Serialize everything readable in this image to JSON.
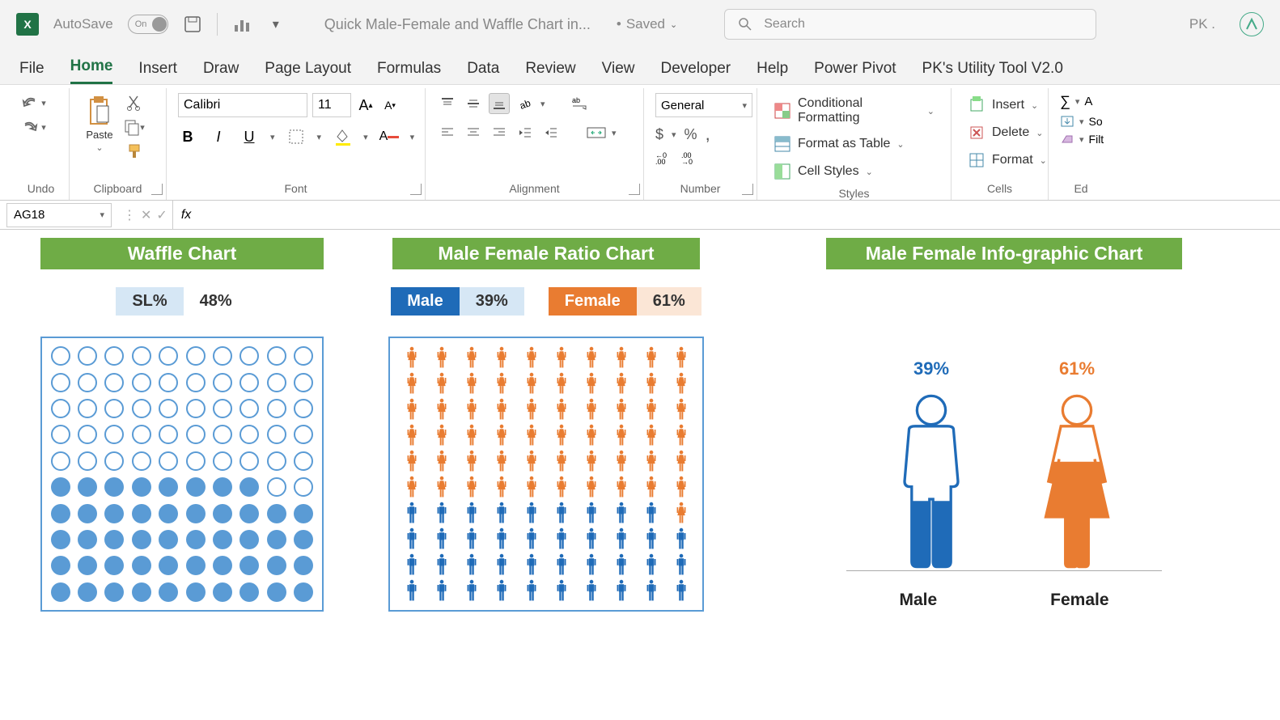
{
  "app": {
    "logo_letter": "X",
    "autosave_label": "AutoSave",
    "autosave_state": "On",
    "doc_title": "Quick Male-Female and Waffle Chart in...",
    "saved_status": "Saved",
    "search_placeholder": "Search",
    "user_initials": "PK ."
  },
  "tabs": [
    "File",
    "Home",
    "Insert",
    "Draw",
    "Page Layout",
    "Formulas",
    "Data",
    "Review",
    "View",
    "Developer",
    "Help",
    "Power Pivot",
    "PK's Utility Tool V2.0"
  ],
  "active_tab": "Home",
  "ribbon": {
    "groups": {
      "undo": "Undo",
      "clipboard": "Clipboard",
      "clipboard_paste": "Paste",
      "font": "Font",
      "font_name": "Calibri",
      "font_size": "11",
      "alignment": "Alignment",
      "number": "Number",
      "number_format": "General",
      "styles": "Styles",
      "styles_cond": "Conditional Formatting",
      "styles_table": "Format as Table",
      "styles_cell": "Cell Styles",
      "cells": "Cells",
      "cells_insert": "Insert",
      "cells_delete": "Delete",
      "cells_format": "Format",
      "editing": "Ed",
      "editing_sort": "So",
      "editing_filter": "Filt"
    }
  },
  "formula_bar": {
    "namebox": "AG18",
    "fx": "fx",
    "formula": ""
  },
  "colors": {
    "green_header": "#6fac46",
    "blue": "#5a9bd5",
    "blue_dark": "#1f6bb8",
    "blue_light": "#d6e7f5",
    "orange": "#e97c31",
    "orange_light": "#fbe6d6"
  },
  "waffle": {
    "title": "Waffle Chart",
    "sl_label": "SL%",
    "sl_value": "48%",
    "filled_count": 48,
    "total": 100,
    "grid_cols": 10,
    "grid_rows": 10,
    "fill_direction": "bottom-left",
    "filled_color": "#5a9bd5",
    "empty_stroke": "#5a9bd5",
    "border_color": "#5a9bd5"
  },
  "ratio": {
    "title": "Male Female Ratio Chart",
    "male_label": "Male",
    "male_value": "39%",
    "female_label": "Female",
    "female_value": "61%",
    "male_count": 39,
    "total": 100,
    "grid_cols": 10,
    "grid_rows": 10,
    "male_color": "#1f6bb8",
    "female_color": "#e97c31",
    "border_color": "#5a9bd5"
  },
  "infographic": {
    "title": "Male Female Info-graphic Chart",
    "male_pct": "39%",
    "male_fill_ratio": 0.39,
    "female_pct": "61%",
    "female_fill_ratio": 0.61,
    "male_label": "Male",
    "female_label": "Female",
    "male_fill_color": "#1f6bb8",
    "male_outline_color": "#1f6bb8",
    "female_fill_color": "#e97c31",
    "female_outline_color": "#e97c31"
  }
}
